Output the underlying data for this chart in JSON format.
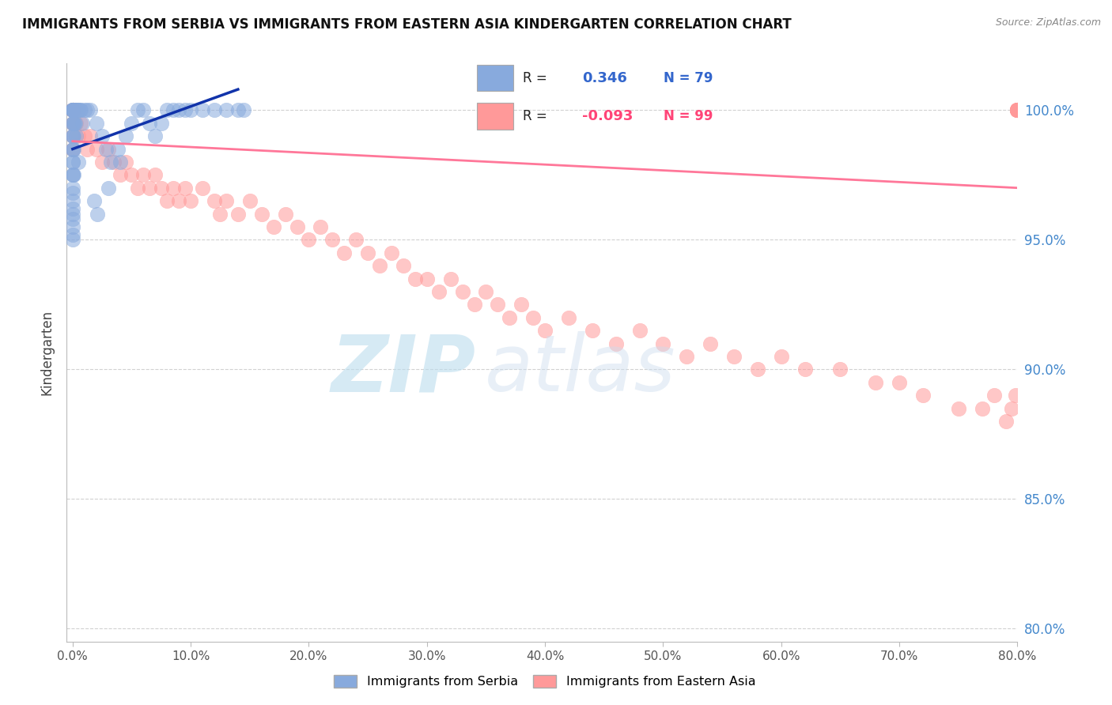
{
  "title": "IMMIGRANTS FROM SERBIA VS IMMIGRANTS FROM EASTERN ASIA KINDERGARTEN CORRELATION CHART",
  "source": "Source: ZipAtlas.com",
  "ylabel": "Kindergarten",
  "x_label_serbia": "Immigrants from Serbia",
  "x_label_eastern_asia": "Immigrants from Eastern Asia",
  "xlim_min": -0.5,
  "xlim_max": 80.0,
  "ylim_min": 79.5,
  "ylim_max": 101.8,
  "yticks": [
    80.0,
    85.0,
    90.0,
    95.0,
    100.0
  ],
  "xticks": [
    0.0,
    10.0,
    20.0,
    30.0,
    40.0,
    50.0,
    60.0,
    70.0,
    80.0
  ],
  "serbia_R": 0.346,
  "serbia_N": 79,
  "eastern_asia_R": -0.093,
  "eastern_asia_N": 99,
  "blue_scatter_color": "#88AADD",
  "pink_scatter_color": "#FF9999",
  "blue_line_color": "#1133AA",
  "pink_line_color": "#FF7799",
  "axis_label_color": "#4488CC",
  "title_color": "#111111",
  "grid_color": "#CCCCCC",
  "watermark_zip_color": "#BBDDEE",
  "watermark_atlas_color": "#CCDDEE",
  "tick_label_color": "#555555",
  "legend_border_color": "#DDDDDD",
  "serbia_trend_x0": 0.0,
  "serbia_trend_x1": 14.0,
  "serbia_trend_y0": 98.5,
  "serbia_trend_y1": 100.8,
  "eastern_trend_x0": 0.0,
  "eastern_trend_x1": 80.0,
  "eastern_trend_y0": 98.8,
  "eastern_trend_y1": 97.0,
  "serbia_x": [
    0.0,
    0.0,
    0.0,
    0.0,
    0.0,
    0.0,
    0.0,
    0.0,
    0.0,
    0.0,
    0.0,
    0.0,
    0.0,
    0.0,
    0.0,
    0.0,
    0.0,
    0.0,
    0.0,
    0.0,
    0.0,
    0.0,
    0.0,
    0.0,
    0.0,
    0.0,
    0.0,
    0.0,
    0.0,
    0.0,
    0.0,
    0.0,
    0.0,
    0.1,
    0.1,
    0.1,
    0.1,
    0.2,
    0.2,
    0.3,
    0.4,
    0.5,
    0.6,
    0.7,
    0.8,
    1.0,
    1.2,
    1.5,
    2.0,
    2.5,
    2.8,
    3.2,
    3.8,
    4.5,
    5.0,
    5.5,
    6.0,
    6.5,
    7.0,
    7.5,
    8.0,
    8.5,
    9.0,
    9.5,
    10.0,
    11.0,
    12.0,
    13.0,
    14.0,
    14.5,
    2.1,
    3.0,
    4.0,
    1.8,
    0.5,
    0.3,
    0.15,
    0.08,
    0.05
  ],
  "serbia_y": [
    100.0,
    100.0,
    100.0,
    100.0,
    100.0,
    100.0,
    100.0,
    100.0,
    100.0,
    100.0,
    100.0,
    100.0,
    100.0,
    100.0,
    99.5,
    99.5,
    99.0,
    99.0,
    98.5,
    98.5,
    98.0,
    98.0,
    97.5,
    97.5,
    97.0,
    96.8,
    96.5,
    96.2,
    96.0,
    95.8,
    95.5,
    95.2,
    95.0,
    100.0,
    100.0,
    99.5,
    99.0,
    100.0,
    99.5,
    100.0,
    100.0,
    100.0,
    100.0,
    100.0,
    99.5,
    100.0,
    100.0,
    100.0,
    99.5,
    99.0,
    98.5,
    98.0,
    98.5,
    99.0,
    99.5,
    100.0,
    100.0,
    99.5,
    99.0,
    99.5,
    100.0,
    100.0,
    100.0,
    100.0,
    100.0,
    100.0,
    100.0,
    100.0,
    100.0,
    100.0,
    96.0,
    97.0,
    98.0,
    96.5,
    98.0,
    99.0,
    99.5,
    98.5,
    97.5
  ],
  "eastern_asia_x": [
    0.0,
    0.0,
    0.0,
    0.0,
    0.0,
    0.0,
    0.0,
    0.1,
    0.1,
    0.2,
    0.3,
    0.5,
    0.7,
    1.0,
    1.2,
    1.5,
    2.0,
    2.5,
    3.0,
    3.5,
    4.0,
    4.5,
    5.0,
    5.5,
    6.0,
    6.5,
    7.0,
    7.5,
    8.0,
    8.5,
    9.0,
    9.5,
    10.0,
    11.0,
    12.0,
    12.5,
    13.0,
    14.0,
    15.0,
    16.0,
    17.0,
    18.0,
    19.0,
    20.0,
    21.0,
    22.0,
    23.0,
    24.0,
    25.0,
    26.0,
    27.0,
    28.0,
    29.0,
    30.0,
    31.0,
    32.0,
    33.0,
    34.0,
    35.0,
    36.0,
    37.0,
    38.0,
    39.0,
    40.0,
    42.0,
    44.0,
    46.0,
    48.0,
    50.0,
    52.0,
    54.0,
    56.0,
    58.0,
    60.0,
    62.0,
    65.0,
    68.0,
    70.0,
    72.0,
    75.0,
    77.0,
    78.0,
    79.0,
    79.5,
    79.8,
    80.0,
    80.0,
    80.0,
    80.0,
    80.0,
    80.0,
    80.0,
    80.0,
    80.0,
    80.0,
    80.0,
    80.0,
    80.0,
    80.0
  ],
  "eastern_asia_y": [
    100.0,
    100.0,
    100.0,
    100.0,
    99.5,
    99.0,
    98.5,
    100.0,
    99.5,
    100.0,
    99.5,
    99.0,
    99.5,
    99.0,
    98.5,
    99.0,
    98.5,
    98.0,
    98.5,
    98.0,
    97.5,
    98.0,
    97.5,
    97.0,
    97.5,
    97.0,
    97.5,
    97.0,
    96.5,
    97.0,
    96.5,
    97.0,
    96.5,
    97.0,
    96.5,
    96.0,
    96.5,
    96.0,
    96.5,
    96.0,
    95.5,
    96.0,
    95.5,
    95.0,
    95.5,
    95.0,
    94.5,
    95.0,
    94.5,
    94.0,
    94.5,
    94.0,
    93.5,
    93.5,
    93.0,
    93.5,
    93.0,
    92.5,
    93.0,
    92.5,
    92.0,
    92.5,
    92.0,
    91.5,
    92.0,
    91.5,
    91.0,
    91.5,
    91.0,
    90.5,
    91.0,
    90.5,
    90.0,
    90.5,
    90.0,
    90.0,
    89.5,
    89.5,
    89.0,
    88.5,
    88.5,
    89.0,
    88.0,
    88.5,
    89.0,
    100.0,
    100.0,
    100.0,
    100.0,
    100.0,
    100.0,
    100.0,
    100.0,
    100.0,
    100.0,
    100.0,
    100.0,
    100.0,
    100.0
  ]
}
